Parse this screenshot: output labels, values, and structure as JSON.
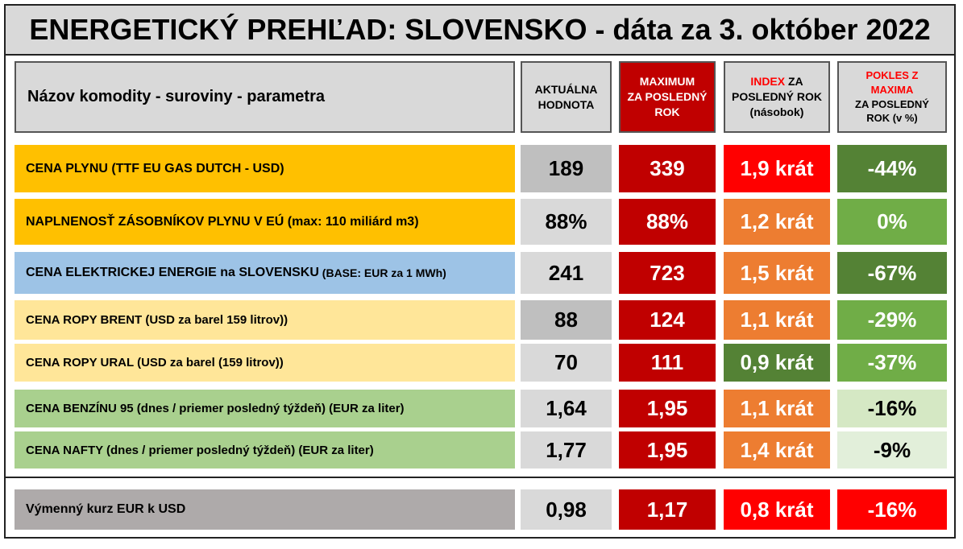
{
  "title": "ENERGETICKÝ PREHĽAD: SLOVENSKO - dáta za 3. október 2022",
  "headers": {
    "name": "Názov komodity - suroviny - parametra",
    "current_l1": "AKTUÁLNA",
    "current_l2": "HODNOTA",
    "max_l1": "MAXIMUM",
    "max_l2": "ZA POSLEDNÝ",
    "max_l3": "ROK",
    "index_a": "INDEX",
    "index_b": " ZA",
    "index_l2": "POSLEDNÝ ROK",
    "index_l3": "(násobok)",
    "drop_l1": "POKLES Z",
    "drop_l2": "MAXIMA",
    "drop_l3": "ZA POSLEDNÝ",
    "drop_l4": "ROK (v %)"
  },
  "rows": [
    {
      "name": "CENA PLYNU (TTF EU GAS DUTCH - USD)",
      "name_extra": "",
      "current": "189",
      "max": "339",
      "index": "1,9 krát",
      "drop": "-44%"
    },
    {
      "name": "NAPLNENOSŤ ZÁSOBNÍKOV PLYNU V EÚ (max: 110 miliárd m3)",
      "name_extra": "",
      "current": "88%",
      "max": "88%",
      "index": "1,2 krát",
      "drop": "0%"
    },
    {
      "name": "CENA ELEKTRICKEJ ENERGIE na SLOVENSKU",
      "name_extra": " (BASE: EUR za 1 MWh)",
      "current": "241",
      "max": "723",
      "index": "1,5 krát",
      "drop": "-67%"
    },
    {
      "name": "CENA ROPY BRENT (USD za barel 159 litrov))",
      "name_extra": "",
      "current": "88",
      "max": "124",
      "index": "1,1 krát",
      "drop": "-29%"
    },
    {
      "name": "CENA ROPY URAL (USD za barel (159 litrov))",
      "name_extra": "",
      "current": "70",
      "max": "111",
      "index": "0,9 krát",
      "drop": "-37%"
    },
    {
      "name": "CENA BENZÍNU 95 (dnes / priemer posledný týždeň) (EUR za liter)",
      "name_extra": "",
      "current": "1,64",
      "max": "1,95",
      "index": "1,1 krát",
      "drop": "-16%"
    },
    {
      "name": "CENA NAFTY (dnes / priemer posledný týždeň) (EUR za liter)",
      "name_extra": "",
      "current": "1,77",
      "max": "1,95",
      "index": "1,4 krát",
      "drop": "-9%"
    },
    {
      "name": "Výmenný kurz EUR k USD",
      "name_extra": "",
      "current": "0,98",
      "max": "1,17",
      "index": "0,8 krát",
      "drop": "-16%"
    }
  ],
  "colors": {
    "header_bg": "#d9d9d9",
    "max_red": "#c00000",
    "bright_red": "#ff0000",
    "orange": "#ed7d31",
    "dark_green": "#548235",
    "mid_green": "#70ad47",
    "light_green": "#d5e8c4",
    "pale_green": "#e2efda",
    "gold": "#ffc000",
    "blue": "#9dc3e6",
    "cream": "#ffe699",
    "sage": "#a9d08e",
    "gray_dark": "#bfbfbf",
    "gray_light": "#d9d9d9",
    "gray_mid": "#aeaaaa"
  }
}
